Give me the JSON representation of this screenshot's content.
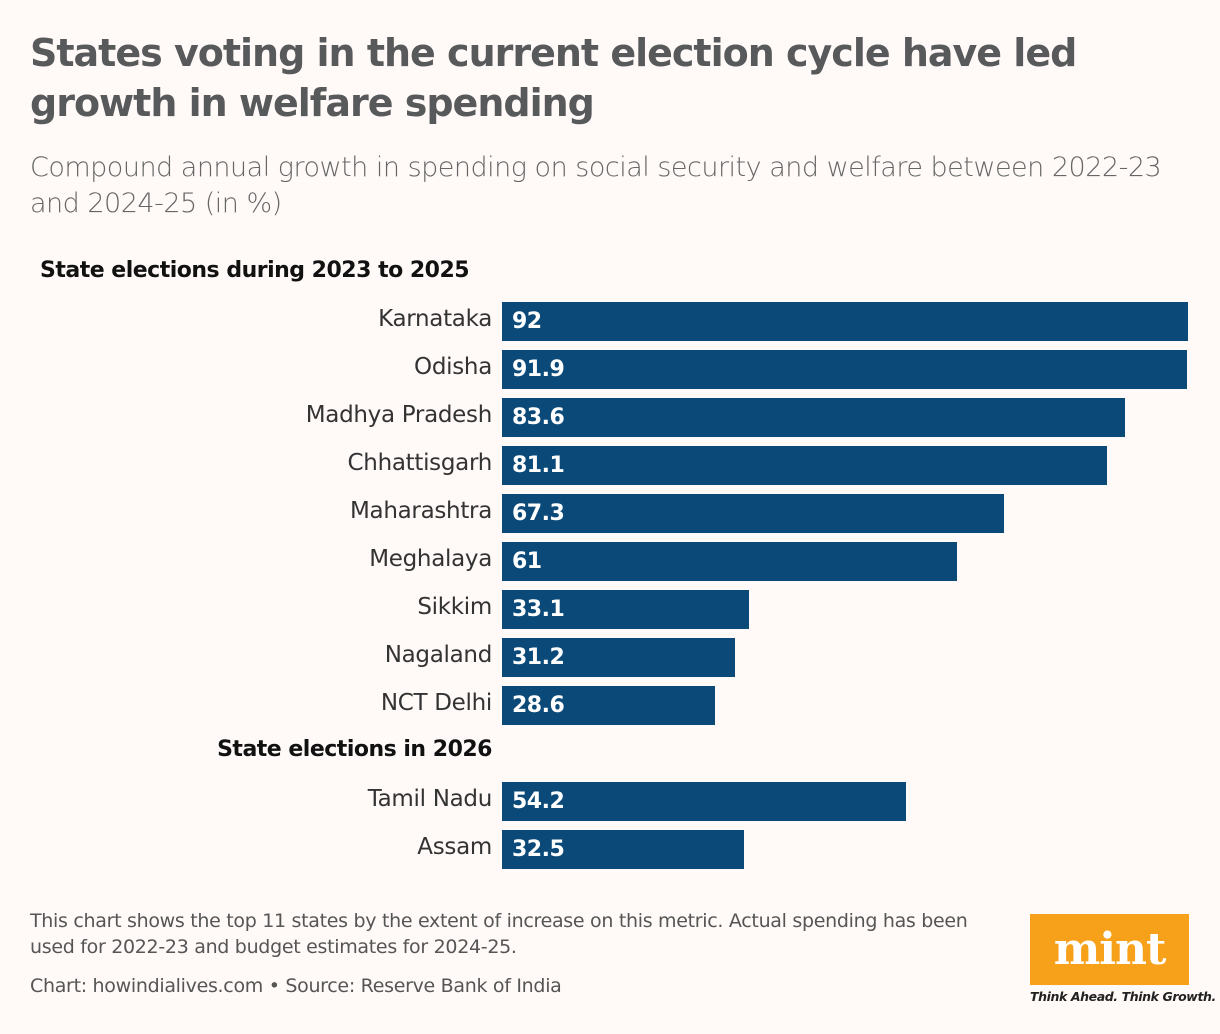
{
  "title": "States voting in the current election cycle have led growth in welfare spending",
  "subtitle": "Compound annual growth in spending on social security and welfare between 2022-23 and 2024-25 (in %)",
  "chart_data": {
    "type": "bar",
    "orientation": "horizontal",
    "xlim": [
      0,
      92
    ],
    "bar_color": "#0b4a78",
    "groups": [
      {
        "label": "State elections during 2023 to 2025",
        "categories": [
          "Karnataka",
          "Odisha",
          "Madhya Pradesh",
          "Chhattisgarh",
          "Maharashtra",
          "Meghalaya",
          "Sikkim",
          "Nagaland",
          "NCT Delhi"
        ],
        "values": [
          92,
          91.9,
          83.6,
          81.1,
          67.3,
          61,
          33.1,
          31.2,
          28.6
        ]
      },
      {
        "label": "State elections in 2026",
        "categories": [
          "Tamil Nadu",
          "Assam"
        ],
        "values": [
          54.2,
          32.5
        ]
      }
    ]
  },
  "footer": {
    "note": "This chart shows the top 11 states by the extent of increase on this metric. Actual spending has been used for 2022-23 and budget estimates for 2024-25.",
    "source": "Chart: howindialives.com • Source: Reserve Bank of India"
  },
  "logo": {
    "text": "mint",
    "tagline": "Think Ahead. Think Growth.",
    "color": "#f7a11a"
  }
}
